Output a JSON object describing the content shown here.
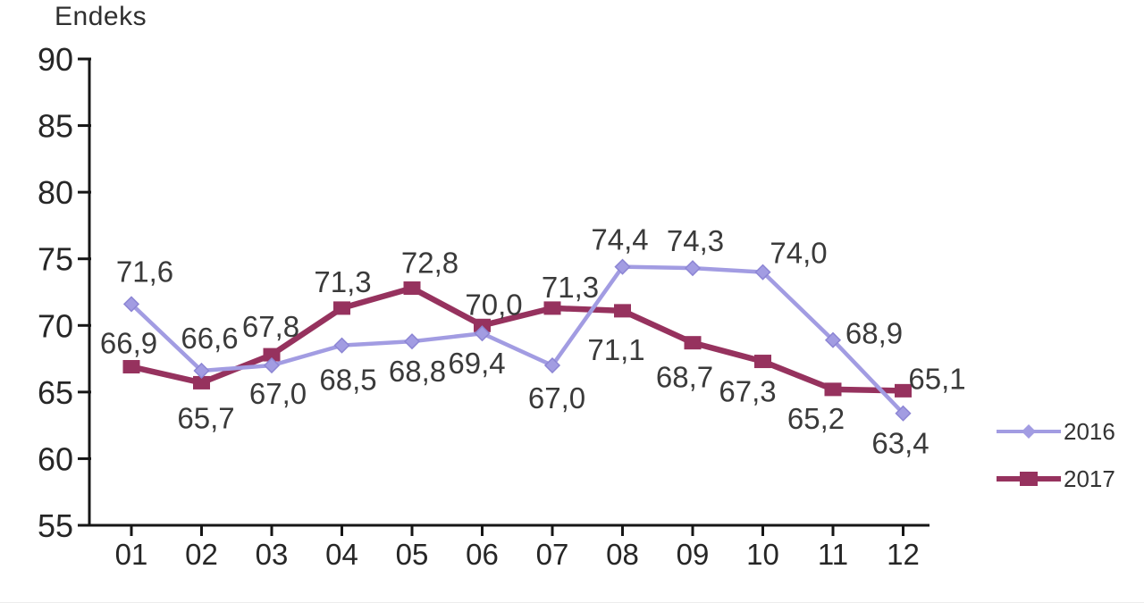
{
  "page": {
    "background": "#ffffff",
    "bottom_rule_color": "#ececec"
  },
  "chart_data": {
    "type": "line",
    "title": "Endeks",
    "xlabel": "",
    "ylabel": "Endeks",
    "x_categories": [
      "01",
      "02",
      "03",
      "04",
      "05",
      "06",
      "07",
      "08",
      "09",
      "10",
      "11",
      "12"
    ],
    "y_ticks": [
      55,
      60,
      65,
      70,
      75,
      80,
      85,
      90
    ],
    "ylim": [
      55,
      90
    ],
    "grid": "off",
    "legend_position": "right-bottom",
    "decimal_separator": ",",
    "draw_order": [
      1,
      0
    ],
    "series": [
      {
        "name": "2016",
        "color": "#a29ce2",
        "marker_stroke": "#8c85d4",
        "marker": "diamond",
        "line_width": 4.5,
        "values": [
          71.6,
          66.6,
          67.0,
          68.5,
          68.8,
          69.4,
          67.0,
          74.4,
          74.3,
          74.0,
          68.9,
          63.4
        ],
        "labels": [
          "71,6",
          "66,6",
          "67,0",
          "68,5",
          "68,8",
          "69,4",
          "67,0",
          "74,4",
          "74,3",
          "74,0",
          "68,9",
          "63,4"
        ],
        "label_offsets": [
          [
            15,
            -25
          ],
          [
            9,
            -25
          ],
          [
            7,
            43
          ],
          [
            7,
            50
          ],
          [
            6,
            45
          ],
          [
            -6,
            45
          ],
          [
            5,
            48
          ],
          [
            -3,
            -19
          ],
          [
            3,
            -19
          ],
          [
            40,
            -10
          ],
          [
            46,
            4
          ],
          [
            -3,
            45
          ]
        ]
      },
      {
        "name": "2017",
        "color": "#96325e",
        "marker_stroke": "#96325e",
        "marker": "square",
        "line_width": 6.5,
        "values": [
          66.9,
          65.7,
          67.8,
          71.3,
          72.8,
          70.0,
          71.3,
          71.1,
          68.7,
          67.3,
          65.2,
          65.1
        ],
        "labels": [
          "66,9",
          "65,7",
          "67,8",
          "71,3",
          "72,8",
          "70,0",
          "71,3",
          "71,1",
          "68,7",
          "67,3",
          "65,2",
          "65,1"
        ],
        "label_offsets": [
          [
            -3,
            -15
          ],
          [
            5,
            51
          ],
          [
            -1,
            -20
          ],
          [
            1,
            -18
          ],
          [
            20,
            -17
          ],
          [
            13,
            -12
          ],
          [
            20,
            -12
          ],
          [
            -7,
            55
          ],
          [
            -9,
            50
          ],
          [
            -17,
            45
          ],
          [
            -19,
            44
          ],
          [
            38,
            -2
          ]
        ]
      }
    ]
  }
}
